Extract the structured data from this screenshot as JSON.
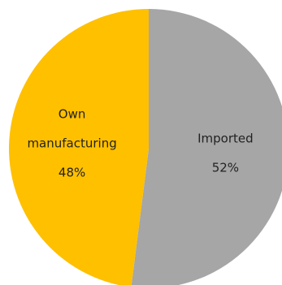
{
  "chart_data": {
    "type": "pie",
    "slices": [
      {
        "label_lines": [
          "Imported"
        ],
        "value": 52,
        "value_label": "52%",
        "color": "#a6a6a6"
      },
      {
        "label_lines": [
          "Own",
          "manufacturing"
        ],
        "value": 48,
        "value_label": "48%",
        "color": "#ffc000"
      }
    ],
    "start_angle_deg": 0,
    "direction": "clockwise",
    "legend": "none"
  }
}
